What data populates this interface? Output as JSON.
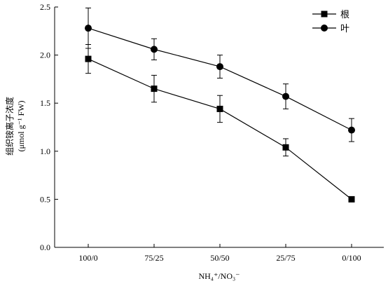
{
  "chart_data": {
    "type": "line",
    "categories": [
      "100/0",
      "75/25",
      "50/50",
      "25/75",
      "0/100"
    ],
    "series": [
      {
        "name": "根",
        "marker": "square",
        "values": [
          1.96,
          1.65,
          1.44,
          1.04,
          0.5
        ],
        "errors": [
          0.15,
          0.14,
          0.14,
          0.09,
          0.0
        ]
      },
      {
        "name": "叶",
        "marker": "circle",
        "values": [
          2.28,
          2.06,
          1.88,
          1.57,
          1.22
        ],
        "errors": [
          0.21,
          0.11,
          0.12,
          0.13,
          0.12
        ]
      }
    ],
    "ylim": [
      0.0,
      2.5
    ],
    "yticks": [
      "0.0",
      "0.5",
      "1.0",
      "1.5",
      "2.0",
      "2.5"
    ],
    "ylabel_line1": "组织铵离子浓度",
    "ylabel_line2": "(μmol g⁻¹ FW)",
    "xlabel": "NH₄⁺/NO₃⁻",
    "legend_position": "top-right",
    "grid": false,
    "color": "#000000"
  }
}
